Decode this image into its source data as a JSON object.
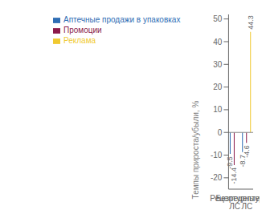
{
  "chart_data": {
    "type": "bar",
    "categories": [
      "Рецептурные ЛС",
      "Безрецептурные ЛС"
    ],
    "series": [
      {
        "name": "Аптечные продажи в упаковках",
        "color": "#2E6DB4",
        "values": [
          -9.5,
          -8.7
        ]
      },
      {
        "name": "Промоции",
        "color": "#8B1A4A",
        "values": [
          -14.4,
          -4.6
        ]
      },
      {
        "name": "Реклама",
        "color": "#F0C930",
        "values": [
          null,
          44.3
        ]
      }
    ],
    "ylabel": "Темпы прироста/убыли, %",
    "ylim": [
      -25,
      52
    ],
    "yticks": [
      -20,
      -10,
      0,
      10,
      20,
      30,
      40,
      50
    ],
    "legend": "upper left",
    "data_labels": true,
    "grid": false
  }
}
